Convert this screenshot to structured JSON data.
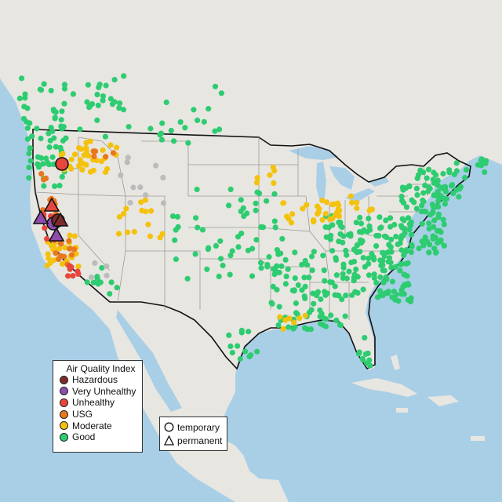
{
  "legend": {
    "title": "Air Quality Index",
    "categories": [
      {
        "label": "Hazardous",
        "color": "#7e2b2b"
      },
      {
        "label": "Very Unhealthy",
        "color": "#8e4cad"
      },
      {
        "label": "Unhealthy",
        "color": "#e8463c"
      },
      {
        "label": "USG",
        "color": "#e8771e"
      },
      {
        "label": "Moderate",
        "color": "#f4c20d"
      },
      {
        "label": "Good",
        "color": "#2ecc71"
      }
    ]
  },
  "shape_legend": {
    "items": [
      {
        "label": "temporary",
        "shape": "circle"
      },
      {
        "label": "permanent",
        "shape": "triangle"
      }
    ]
  },
  "colors": {
    "water": "#a9cfe6",
    "land": "#e8e6e1",
    "state_lines": "#9a9a9a",
    "no_data": "#bbbbbb"
  }
}
